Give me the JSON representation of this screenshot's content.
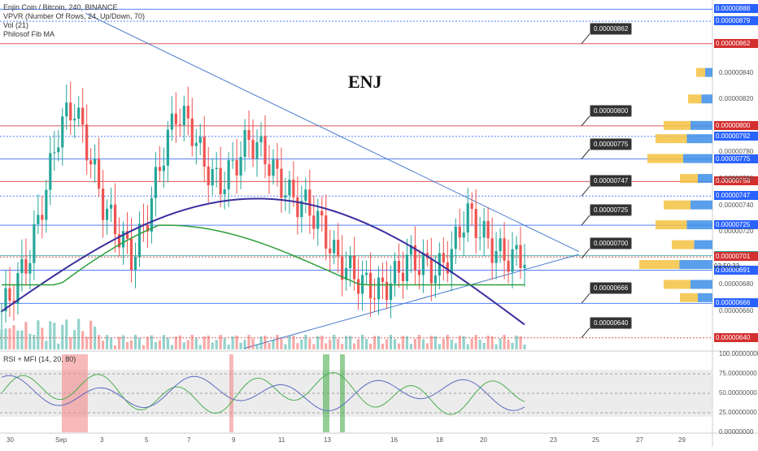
{
  "legend": {
    "symbol": "Enjin Coin / Bitcoin, 240, BINANCE",
    "vpvr": "VPVR (Number Of Rows, 24, Up/Down, 70)",
    "vol": "Vol (21)",
    "ma": "Philosof Fib MA"
  },
  "title": "ENJ",
  "rsi_legend": "RSI + MFI (14, 20, 80)",
  "timer": "03:50:33",
  "callouts": [
    {
      "label": "0.00000862",
      "price": 862
    },
    {
      "label": "0.00000800",
      "price": 800
    },
    {
      "label": "0.00000775",
      "price": 775
    },
    {
      "label": "0.00000747",
      "price": 747
    },
    {
      "label": "0.00000725",
      "price": 725
    },
    {
      "label": "0.00000700",
      "price": 700
    },
    {
      "label": "0.00000666",
      "price": 666
    },
    {
      "label": "0.00000640",
      "price": 640
    }
  ],
  "price_tags": [
    {
      "label": "0.00000888",
      "price": 888,
      "color": "#2962ff"
    },
    {
      "label": "0.00000879",
      "price": 879,
      "color": "#2962ff"
    },
    {
      "label": "0.00000862",
      "price": 862,
      "color": "#d32f2f"
    },
    {
      "label": "0.00000800",
      "price": 800,
      "color": "#d32f2f"
    },
    {
      "label": "0.00000792",
      "price": 792,
      "color": "#2962ff"
    },
    {
      "label": "0.00000775",
      "price": 775,
      "color": "#2962ff"
    },
    {
      "label": "0.00000758",
      "price": 758,
      "color": "#d32f2f"
    },
    {
      "label": "0.00000747",
      "price": 747,
      "color": "#2962ff"
    },
    {
      "label": "0.00000725",
      "price": 725,
      "color": "#2962ff"
    },
    {
      "label": "0.00000702",
      "price": 702,
      "color": "#26a69a"
    },
    {
      "label": "0.00000701",
      "price": 701,
      "color": "#d32f2f"
    },
    {
      "label": "0.00000691",
      "price": 691,
      "color": "#2962ff"
    },
    {
      "label": "0.00000666",
      "price": 666,
      "color": "#2962ff"
    },
    {
      "label": "0.00000640",
      "price": 640,
      "color": "#d32f2f"
    }
  ],
  "price_axis_ticks": [
    "0.00000840",
    "0.00000820",
    "0.00000780",
    "0.00000760",
    "0.00000740",
    "0.00000720",
    "0.00000680",
    "0.00000660"
  ],
  "rsi_axis_ticks": [
    "100.00000000",
    "75.00000000",
    "50.00000000",
    "25.00000000",
    "0.00000000"
  ],
  "x_axis_ticks": [
    "30",
    "Sep",
    "3",
    "5",
    "7",
    "9",
    "11",
    "13",
    "16",
    "18",
    "20",
    "23",
    "25",
    "27",
    "29"
  ],
  "chart_data": {
    "type": "candlestick",
    "pair": "ENJ/BTC",
    "interval": "240",
    "price_unit": "1e-8 BTC (satoshi)",
    "ylim": [
      630,
      895
    ],
    "horizontal_levels": [
      888,
      879,
      862,
      800,
      792,
      775,
      758,
      747,
      725,
      702,
      701,
      691,
      666,
      640
    ],
    "candles_close_approx": [
      [
        0,
        660
      ],
      [
        2,
        680
      ],
      [
        4,
        705
      ],
      [
        6,
        750
      ],
      [
        8,
        800
      ],
      [
        10,
        815
      ],
      [
        12,
        780
      ],
      [
        14,
        740
      ],
      [
        16,
        720
      ],
      [
        18,
        700
      ],
      [
        20,
        730
      ],
      [
        22,
        775
      ],
      [
        24,
        810
      ],
      [
        26,
        800
      ],
      [
        28,
        770
      ],
      [
        30,
        755
      ],
      [
        32,
        770
      ],
      [
        34,
        790
      ],
      [
        36,
        780
      ],
      [
        38,
        760
      ],
      [
        40,
        745
      ],
      [
        42,
        740
      ],
      [
        44,
        725
      ],
      [
        46,
        700
      ],
      [
        48,
        690
      ],
      [
        50,
        680
      ],
      [
        52,
        675
      ],
      [
        54,
        685
      ],
      [
        56,
        700
      ],
      [
        58,
        695
      ],
      [
        60,
        690
      ],
      [
        62,
        705
      ],
      [
        64,
        735
      ],
      [
        66,
        720
      ],
      [
        68,
        705
      ],
      [
        70,
        700
      ],
      [
        72,
        702
      ]
    ],
    "rsi_range": [
      0,
      100
    ],
    "rsi_bands": [
      20,
      80
    ]
  }
}
